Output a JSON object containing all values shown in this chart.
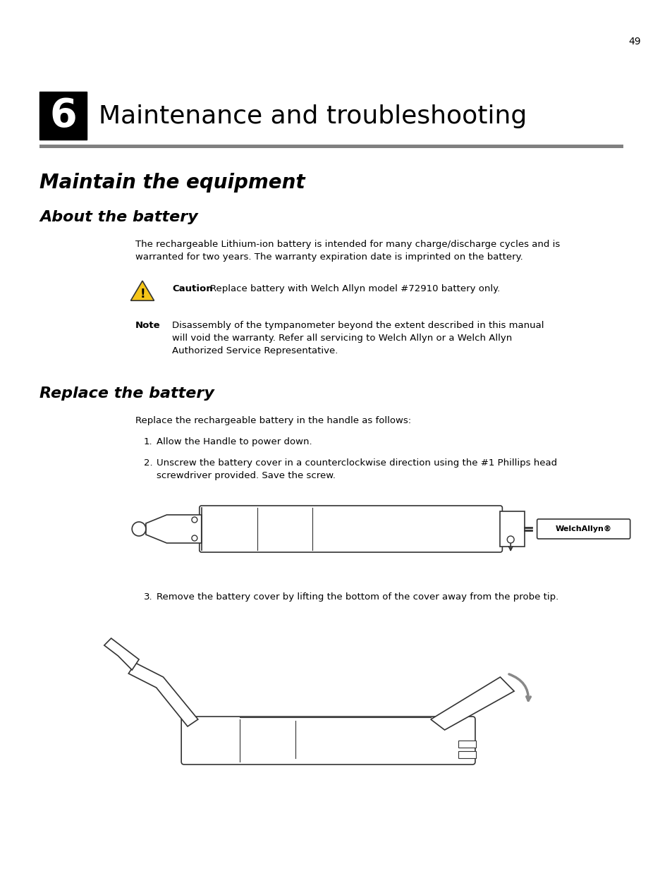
{
  "page_number": "49",
  "chapter_number": "6",
  "chapter_title": "Maintenance and troubleshooting",
  "section1_title": "Maintain the equipment",
  "section2_title": "About the battery",
  "body_text1": "The rechargeable Lithium-ion battery is intended for many charge/discharge cycles and is\nwarranted for two years. The warranty expiration date is imprinted on the battery.",
  "caution_label": "Caution",
  "caution_text": "Replace battery with Welch Allyn model #72910 battery only.",
  "note_label": "Note",
  "note_text": "Disassembly of the tympanometer beyond the extent described in this manual\nwill void the warranty. Refer all servicing to Welch Allyn or a Welch Allyn\nAuthorized Service Representative.",
  "section3_title": "Replace the battery",
  "body_text2": "Replace the rechargeable battery in the handle as follows:",
  "step1": "Allow the Handle to power down.",
  "step2": "Unscrew the battery cover in a counterclockwise direction using the #1 Phillips head\nscrewdriver provided. Save the screw.",
  "step3": "Remove the battery cover by lifting the bottom of the cover away from the probe tip.",
  "bg_color": "#ffffff",
  "text_color": "#000000",
  "chapter_box_color": "#000000",
  "chapter_text_color": "#ffffff",
  "line_color": "#808080",
  "caution_triangle_color": "#f5c518",
  "header_line_color": "#808080"
}
